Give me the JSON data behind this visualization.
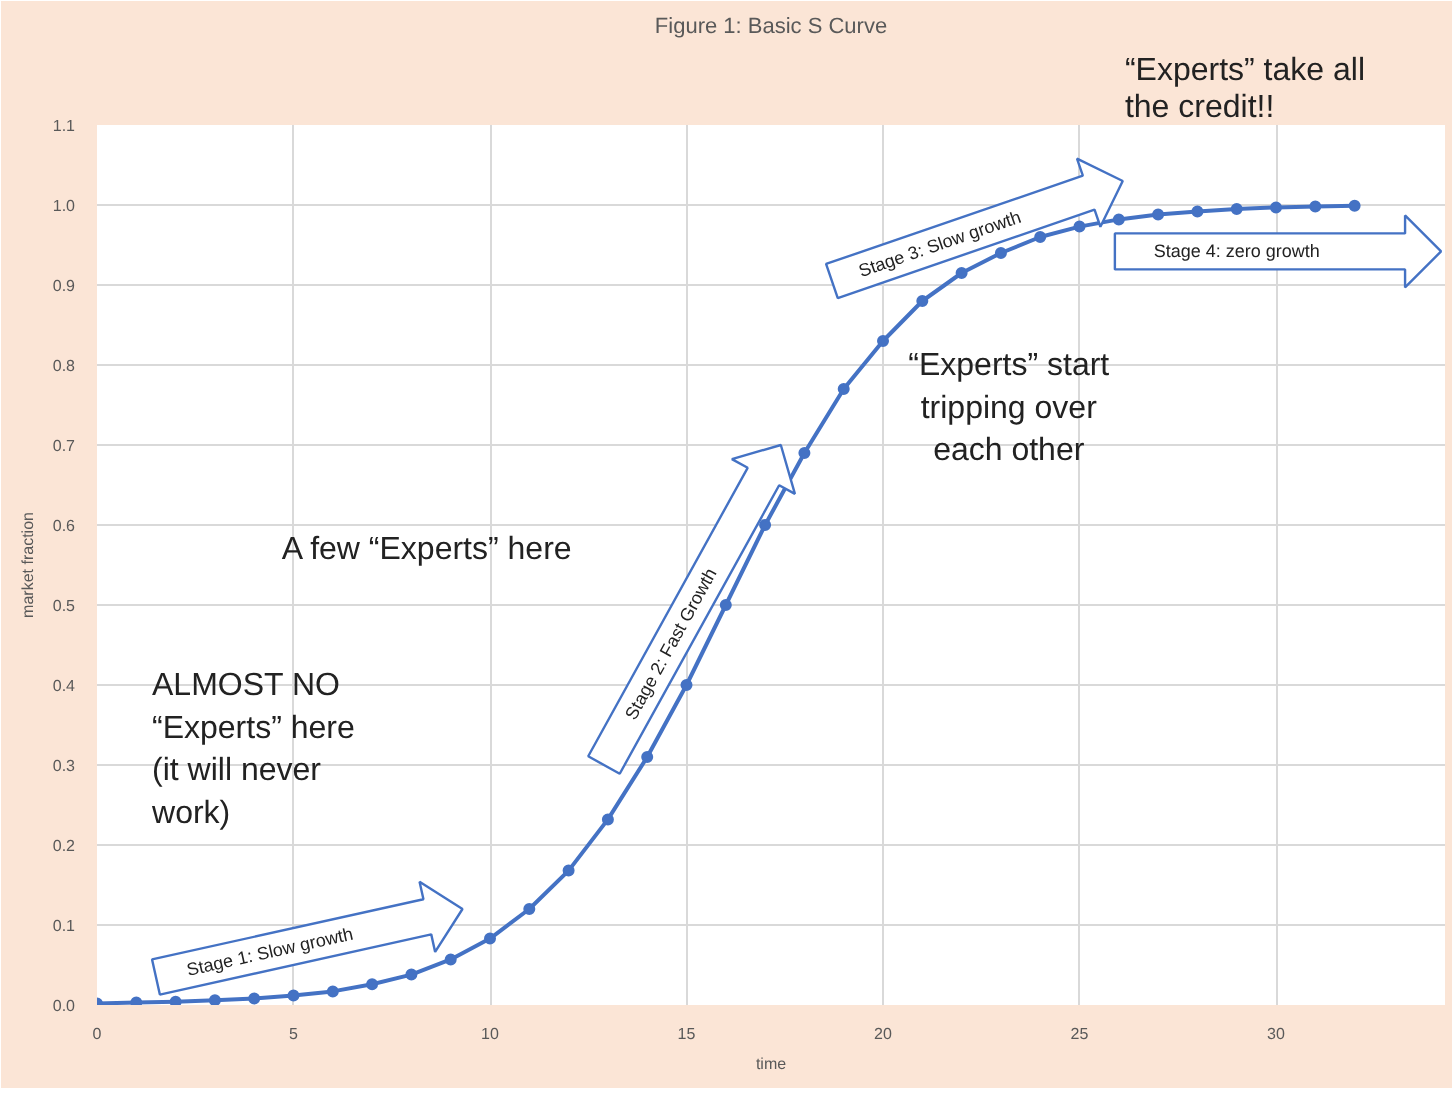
{
  "chart_data": {
    "type": "line",
    "title": "Figure 1: Basic S Curve",
    "xlabel": "time",
    "ylabel": "market fraction",
    "x": [
      0,
      1,
      2,
      3,
      4,
      5,
      6,
      7,
      8,
      9,
      10,
      11,
      12,
      13,
      14,
      15,
      16,
      17,
      18,
      19,
      20,
      21,
      22,
      23,
      24,
      25,
      26,
      27,
      28,
      29,
      30,
      31,
      32
    ],
    "series": [
      {
        "color": "#4472c4",
        "values": [
          0.002,
          0.003,
          0.004,
          0.006,
          0.008,
          0.012,
          0.017,
          0.026,
          0.038,
          0.057,
          0.083,
          0.12,
          0.168,
          0.232,
          0.31,
          0.4,
          0.5,
          0.6,
          0.69,
          0.77,
          0.83,
          0.88,
          0.915,
          0.94,
          0.96,
          0.973,
          0.982,
          0.988,
          0.992,
          0.995,
          0.997,
          0.998,
          0.999
        ]
      }
    ],
    "xlim": [
      0,
      34.3
    ],
    "ylim": [
      0,
      1.1
    ],
    "xticks": [
      0,
      5,
      10,
      15,
      20,
      25,
      30
    ],
    "yticks": [
      {
        "value": 0,
        "label": "0.0"
      },
      {
        "value": 0.1,
        "label": "0.1"
      },
      {
        "value": 0.2,
        "label": "0.2"
      },
      {
        "value": 0.3,
        "label": "0.3"
      },
      {
        "value": 0.4,
        "label": "0.4"
      },
      {
        "value": 0.5,
        "label": "0.5"
      },
      {
        "value": 0.6,
        "label": "0.6"
      },
      {
        "value": 0.7,
        "label": "0.7"
      },
      {
        "value": 0.8,
        "label": "0.8"
      },
      {
        "value": 0.9,
        "label": "0.9"
      },
      {
        "value": 1.0,
        "label": "1.0"
      },
      {
        "value": 1.1,
        "label": "1.1"
      }
    ],
    "grid": true,
    "marker": "circle",
    "line_style": "solid",
    "annotations": [
      "ALMOST NO “Experts” here (it will never work)",
      "A few  “Experts” here",
      "“Experts” start tripping over each other",
      "“Experts” take all the credit!!",
      "Stage 1: Slow growth",
      "Stage 2: Fast Growth",
      "Stage 3: Slow growth",
      "Stage 4: zero growth"
    ]
  }
}
